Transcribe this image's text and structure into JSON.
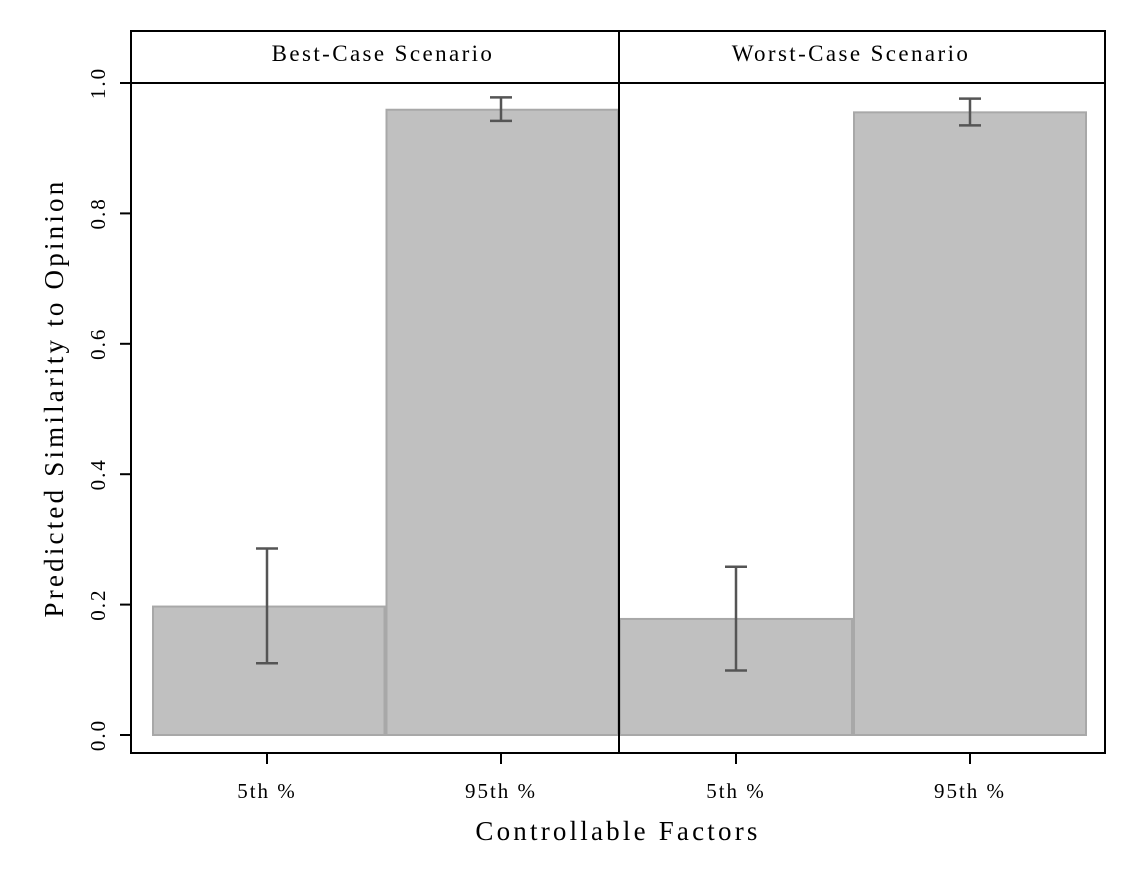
{
  "chart_data": {
    "type": "bar",
    "xlabel": "Controllable Factors",
    "ylabel": "Predicted Similarity to Opinion",
    "ylim": [
      -0.03,
      1.0
    ],
    "yticks": [
      0.0,
      0.2,
      0.4,
      0.6,
      0.8,
      1.0
    ],
    "ytick_labels": [
      "0.0",
      "0.2",
      "0.4",
      "0.6",
      "0.8",
      "1.0"
    ],
    "grid": false,
    "bar_color": "#c0c0c0",
    "bar_edge_color": "#a8a8a8",
    "errorbar_color": "#555555",
    "categories": [
      "5th %",
      "95th %"
    ],
    "panels": [
      {
        "title": "Best-Case Scenario",
        "values": [
          0.197,
          0.959
        ],
        "ci_low": [
          0.11,
          0.942
        ],
        "ci_high": [
          0.286,
          0.978
        ]
      },
      {
        "title": "Worst-Case Scenario",
        "values": [
          0.178,
          0.955
        ],
        "ci_low": [
          0.099,
          0.935
        ],
        "ci_high": [
          0.258,
          0.976
        ]
      }
    ]
  }
}
